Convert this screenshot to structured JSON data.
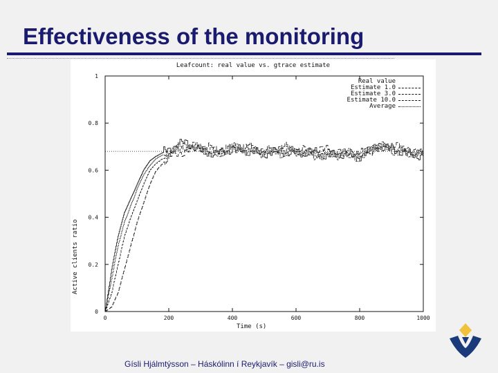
{
  "slide": {
    "title": "Effectiveness of the monitoring",
    "footer": "Gísli Hjálmtýsson – Háskólinn í Reykjavík – gisli@ru.is",
    "title_color": "#1a1a6e",
    "logo_icon": "university-logo-icon",
    "logo_colors": {
      "diamond": "#f0c23b",
      "shape": "#1a3a7a"
    }
  },
  "chart_data": {
    "type": "line",
    "title": "Leafcount: real value vs. gtrace estimate",
    "xlabel": "Time (s)",
    "ylabel": "Active clients ratio",
    "xlim": [
      0,
      1000
    ],
    "ylim": [
      0,
      1
    ],
    "x_ticks": [
      "0",
      "200",
      "400",
      "600",
      "800",
      "1000"
    ],
    "y_ticks": [
      "0",
      "0.2",
      "0.4",
      "0.6",
      "0.8",
      "1"
    ],
    "legend_position": "top-right",
    "grid": false,
    "series": [
      {
        "name": "Real value",
        "style": "solid",
        "x": [
          0,
          20,
          40,
          60,
          80,
          100,
          120,
          140,
          160,
          200,
          250,
          300,
          350,
          400,
          450,
          500,
          550,
          600,
          650,
          700,
          750,
          800,
          850,
          900,
          950,
          1000
        ],
        "y": [
          0.0,
          0.18,
          0.32,
          0.42,
          0.48,
          0.54,
          0.6,
          0.64,
          0.66,
          0.69,
          0.72,
          0.68,
          0.67,
          0.69,
          0.68,
          0.67,
          0.68,
          0.67,
          0.68,
          0.66,
          0.67,
          0.66,
          0.7,
          0.69,
          0.67,
          0.66
        ]
      },
      {
        "name": "Estimate 1.0",
        "style": "dense-dash",
        "x": [
          0,
          20,
          40,
          60,
          80,
          100,
          120,
          140,
          160,
          200,
          250,
          300,
          350,
          400,
          450,
          500,
          550,
          600,
          650,
          700,
          750,
          800,
          850,
          900,
          950,
          1000
        ],
        "y": [
          0.0,
          0.14,
          0.28,
          0.38,
          0.45,
          0.52,
          0.58,
          0.62,
          0.65,
          0.68,
          0.71,
          0.69,
          0.66,
          0.7,
          0.68,
          0.68,
          0.67,
          0.68,
          0.67,
          0.66,
          0.68,
          0.65,
          0.71,
          0.68,
          0.68,
          0.67
        ]
      },
      {
        "name": "Estimate 3.0",
        "style": "dashed",
        "x": [
          0,
          20,
          40,
          60,
          80,
          100,
          120,
          140,
          160,
          200,
          250,
          300,
          350,
          400,
          450,
          500,
          550,
          600,
          650,
          700,
          750,
          800,
          850,
          900,
          950,
          1000
        ],
        "y": [
          0.0,
          0.08,
          0.2,
          0.32,
          0.4,
          0.47,
          0.54,
          0.6,
          0.63,
          0.67,
          0.7,
          0.7,
          0.67,
          0.7,
          0.69,
          0.67,
          0.69,
          0.68,
          0.66,
          0.67,
          0.66,
          0.66,
          0.7,
          0.7,
          0.67,
          0.67
        ]
      },
      {
        "name": "Estimate 10.0",
        "style": "long-dash",
        "x": [
          0,
          20,
          40,
          60,
          80,
          100,
          120,
          140,
          160,
          200,
          250,
          300,
          350,
          400,
          450,
          500,
          550,
          600,
          650,
          700,
          750,
          800,
          850,
          900,
          950,
          1000
        ],
        "y": [
          0.0,
          0.02,
          0.08,
          0.18,
          0.28,
          0.38,
          0.46,
          0.54,
          0.6,
          0.66,
          0.68,
          0.7,
          0.69,
          0.69,
          0.7,
          0.68,
          0.7,
          0.69,
          0.68,
          0.69,
          0.67,
          0.67,
          0.69,
          0.71,
          0.68,
          0.67
        ]
      },
      {
        "name": "Average",
        "style": "dotted",
        "x": [
          0,
          1000
        ],
        "y": [
          0.68,
          0.68
        ]
      }
    ]
  }
}
